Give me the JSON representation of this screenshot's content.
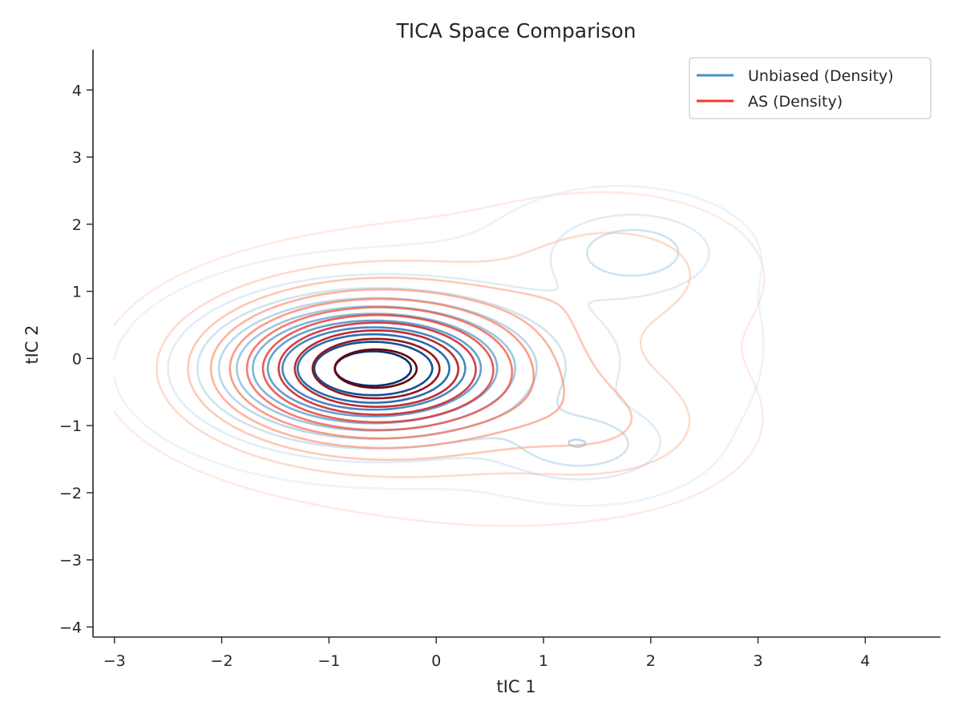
{
  "chart_data": {
    "type": "contour",
    "title": "TICA Space Comparison",
    "xlabel": "tIC 1",
    "ylabel": "tIC 2",
    "xlim": [
      -3.2,
      4.7
    ],
    "ylim": [
      -4.15,
      4.6
    ],
    "xticks": [
      -3,
      -2,
      -1,
      0,
      1,
      2,
      3,
      4
    ],
    "yticks": [
      -4,
      -3,
      -2,
      -1,
      0,
      1,
      2,
      3,
      4
    ],
    "xtick_labels": [
      "−3",
      "−2",
      "−1",
      "0",
      "1",
      "2",
      "3",
      "4"
    ],
    "ytick_labels": [
      "−4",
      "−3",
      "−2",
      "−1",
      "0",
      "1",
      "2",
      "3",
      "4"
    ],
    "grid": false,
    "legend_position": "top-right",
    "series": [
      {
        "name": "Unbiased (Density)",
        "color": "#4292c6",
        "cmap": "Blues",
        "modes": [
          {
            "center": [
              -0.6,
              -0.15
            ],
            "sx": 0.85,
            "sy": 0.62,
            "weight": 1.0
          },
          {
            "center": [
              1.85,
              1.6
            ],
            "sx": 0.45,
            "sy": 0.35,
            "weight": 0.2
          },
          {
            "center": [
              1.35,
              -1.3
            ],
            "sx": 0.45,
            "sy": 0.32,
            "weight": 0.2
          },
          {
            "center": [
              1.5,
              0.2
            ],
            "sx": 1.0,
            "sy": 1.4,
            "weight": 0.06
          }
        ]
      },
      {
        "name": "AS (Density)",
        "color": "#ef3b2c",
        "cmap": "Reds",
        "modes": [
          {
            "center": [
              -0.6,
              -0.15
            ],
            "sx": 0.9,
            "sy": 0.68,
            "weight": 1.0
          },
          {
            "center": [
              1.7,
              1.3
            ],
            "sx": 0.65,
            "sy": 0.55,
            "weight": 0.12
          },
          {
            "center": [
              1.6,
              -1.0
            ],
            "sx": 0.65,
            "sy": 0.55,
            "weight": 0.12
          },
          {
            "center": [
              0.6,
              -0.2
            ],
            "sx": 1.2,
            "sy": 1.3,
            "weight": 0.08
          }
        ]
      }
    ]
  }
}
